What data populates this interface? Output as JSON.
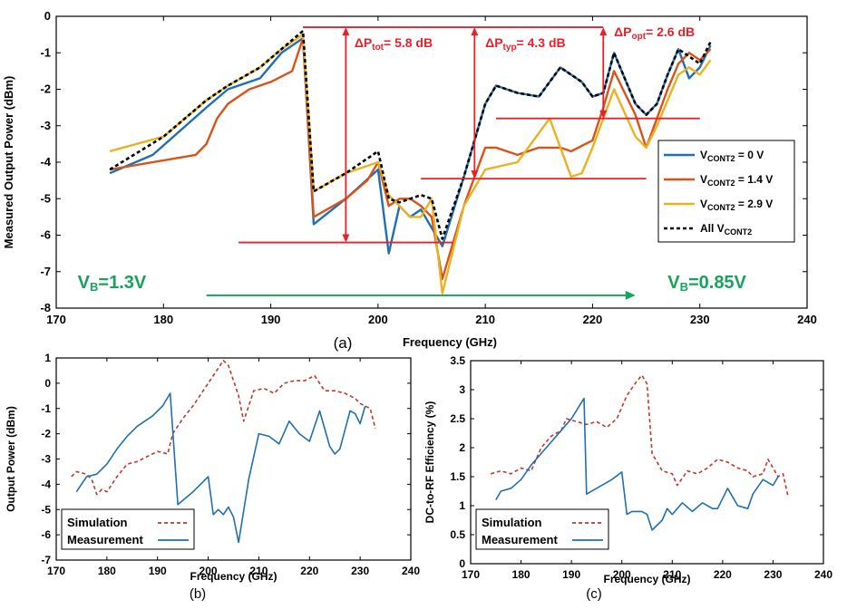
{
  "chart_data": [
    {
      "panel": "(a)",
      "type": "line",
      "xlabel": "Frequency (GHz)",
      "ylabel": "Measured Output Power (dBm)",
      "xlim": [
        170,
        240
      ],
      "ylim": [
        -8,
        0
      ],
      "xticks": [
        "170",
        "180",
        "190",
        "200",
        "210",
        "220",
        "230",
        "240"
      ],
      "yticks": [
        "-8",
        "-7",
        "-6",
        "-5",
        "-4",
        "-3",
        "-2",
        "-1",
        "0"
      ],
      "grid": false,
      "legend": "right",
      "series": [
        {
          "name": "V",
          "sub": "CONT2",
          "suffix": " = 0 V",
          "color": "#1f6fb5",
          "dash": "",
          "x": [
            175,
            179,
            184,
            186,
            189,
            191,
            193,
            194,
            197,
            200,
            201,
            202,
            203,
            204,
            205,
            206,
            208,
            210,
            211,
            213,
            215,
            216,
            217,
            219,
            220,
            221,
            222,
            224,
            225,
            226,
            227,
            228,
            229,
            230,
            231
          ],
          "y": [
            -4.3,
            -3.8,
            -2.5,
            -2.0,
            -1.7,
            -1.0,
            -0.6,
            -5.7,
            -5.0,
            -4.2,
            -6.5,
            -5.2,
            -5.5,
            -5.3,
            -5.8,
            -6.3,
            -4.4,
            -2.4,
            -1.9,
            -2.1,
            -2.2,
            -1.8,
            -1.4,
            -1.8,
            -2.2,
            -2.1,
            -1.0,
            -2.4,
            -2.7,
            -2.4,
            -1.6,
            -0.9,
            -1.7,
            -1.4,
            -0.8
          ]
        },
        {
          "name": "V",
          "sub": "CONT2",
          "suffix": " = 1.4 V",
          "color": "#d95319",
          "dash": "",
          "x": [
            175,
            183,
            184,
            185,
            186,
            188,
            190,
            192,
            193,
            194,
            197,
            199,
            200,
            201,
            202,
            203,
            204,
            205,
            206,
            208,
            210,
            211,
            213,
            215,
            217,
            218,
            220,
            221,
            222,
            224,
            225,
            226,
            227,
            228,
            229,
            230,
            231
          ],
          "y": [
            -4.2,
            -3.8,
            -3.5,
            -2.8,
            -2.4,
            -2.0,
            -1.8,
            -1.5,
            -0.6,
            -5.5,
            -5.0,
            -4.5,
            -4.0,
            -5.2,
            -5.0,
            -5.0,
            -5.2,
            -5.5,
            -7.2,
            -5.2,
            -3.6,
            -3.6,
            -3.8,
            -3.6,
            -3.6,
            -3.7,
            -3.4,
            -2.5,
            -1.5,
            -2.7,
            -3.6,
            -2.8,
            -2.0,
            -1.3,
            -1.0,
            -1.2,
            -0.9
          ]
        },
        {
          "name": "V",
          "sub": "CONT2",
          "suffix": " = 2.9 V",
          "color": "#edb120",
          "dash": "",
          "x": [
            175,
            180,
            184,
            186,
            189,
            191,
            193,
            194,
            197,
            200,
            201,
            202,
            203,
            204,
            205,
            206,
            208,
            210,
            213,
            214,
            216,
            218,
            219,
            220,
            221,
            222,
            224,
            225,
            226,
            228,
            229,
            230,
            231
          ],
          "y": [
            -3.7,
            -3.3,
            -2.3,
            -1.9,
            -1.4,
            -0.9,
            -0.5,
            -4.8,
            -4.3,
            -4.0,
            -4.9,
            -5.2,
            -5.5,
            -5.5,
            -5.0,
            -7.6,
            -5.2,
            -4.2,
            -4.0,
            -3.6,
            -2.8,
            -4.4,
            -4.3,
            -3.6,
            -2.8,
            -2.0,
            -3.3,
            -3.6,
            -3.0,
            -1.6,
            -1.4,
            -1.6,
            -1.2
          ]
        },
        {
          "name": "All V",
          "sub": "CONT2",
          "suffix": "",
          "color": "#000000",
          "dash": "4,3",
          "x": [
            175,
            180,
            184,
            186,
            189,
            191,
            193,
            194,
            197,
            200,
            201,
            202,
            203,
            204,
            205,
            206,
            208,
            210,
            211,
            213,
            215,
            216,
            217,
            219,
            220,
            221,
            222,
            224,
            225,
            226,
            227,
            228,
            229,
            230,
            231
          ],
          "y": [
            -4.2,
            -3.3,
            -2.3,
            -1.9,
            -1.4,
            -0.9,
            -0.4,
            -4.8,
            -4.3,
            -3.7,
            -5.0,
            -5.1,
            -5.0,
            -4.9,
            -5.0,
            -6.1,
            -4.4,
            -2.4,
            -1.9,
            -2.1,
            -2.2,
            -1.8,
            -1.4,
            -1.8,
            -2.2,
            -2.1,
            -1.0,
            -2.4,
            -2.7,
            -2.4,
            -1.6,
            -0.9,
            -1.1,
            -1.3,
            -0.7
          ]
        }
      ],
      "annotations": {
        "hlines": [
          {
            "y": -0.3,
            "x": [
              193,
              221
            ]
          },
          {
            "y": -6.2,
            "x": [
              187,
              207
            ]
          },
          {
            "y": -4.45,
            "x": [
              204,
              225
            ]
          },
          {
            "y": -2.8,
            "x": [
              211,
              230
            ]
          }
        ],
        "arrows": [
          {
            "x": 197,
            "y1": -0.3,
            "y2": -6.2
          },
          {
            "x": 209,
            "y1": -0.3,
            "y2": -4.45
          },
          {
            "x": 221,
            "y1": -0.3,
            "y2": -2.8
          }
        ],
        "labels": [
          {
            "prefix": "ΔP",
            "sub": "tot",
            "text": "= 5.8 dB",
            "x": 197.8,
            "y": -0.85
          },
          {
            "prefix": "ΔP",
            "sub": "typ",
            "text": "= 4.3 dB",
            "x": 210,
            "y": -0.85
          },
          {
            "prefix": "ΔP",
            "sub": "opt",
            "text": "= 2.6 dB",
            "x": 222,
            "y": -0.55
          }
        ],
        "range_arrow": {
          "x": [
            184,
            224
          ],
          "y": -7.65
        },
        "vb_left": {
          "prefix": "V",
          "sub": "B",
          "text": "=1.3V",
          "x": 172,
          "y": -7.45
        },
        "vb_right": {
          "prefix": "V",
          "sub": "B",
          "text": "=0.85V",
          "x": 227,
          "y": -7.45
        },
        "accent": "#e8202a",
        "range_color": "#17a35a"
      },
      "caption": "(a)"
    },
    {
      "panel": "(b)",
      "type": "line",
      "xlabel": "Frequency (GHz)",
      "ylabel": "Output Power (dBm)",
      "xlim": [
        170,
        240
      ],
      "ylim": [
        -7,
        1
      ],
      "xticks": [
        "170",
        "180",
        "190",
        "200",
        "210",
        "220",
        "230",
        "240"
      ],
      "yticks": [
        "-7",
        "-6",
        "-5",
        "-4",
        "-3",
        "-2",
        "-1",
        "0",
        "1"
      ],
      "grid": false,
      "legend": "bottom-left",
      "series": [
        {
          "name": "Simulation",
          "color": "#c0392b",
          "dash": "4,3",
          "x": [
            173,
            174,
            176,
            177,
            178,
            179,
            180,
            182,
            184,
            186,
            188,
            190,
            192,
            193,
            195,
            197,
            199,
            201,
            203,
            204,
            206,
            207,
            209,
            211,
            213,
            215,
            217,
            219,
            221,
            223,
            225,
            227,
            229,
            230,
            231,
            232,
            233
          ],
          "y": [
            -3.7,
            -3.5,
            -3.6,
            -3.8,
            -4.4,
            -4.2,
            -4.3,
            -3.7,
            -3.2,
            -3.1,
            -2.9,
            -2.7,
            -2.8,
            -2.0,
            -1.4,
            -0.9,
            -0.3,
            0.3,
            0.9,
            0.7,
            -0.5,
            -1.5,
            -0.3,
            -0.2,
            -0.4,
            0.0,
            0.1,
            0.1,
            0.3,
            -0.3,
            -0.3,
            -0.4,
            -0.6,
            -0.8,
            -0.9,
            -1.0,
            -1.8
          ]
        },
        {
          "name": "Measurement",
          "color": "#1f6fb5",
          "dash": "",
          "x": [
            174,
            176,
            178,
            180,
            182,
            184,
            186,
            189,
            191,
            192.5,
            194,
            197,
            199,
            200,
            201,
            202,
            203,
            204,
            205,
            206,
            208,
            210,
            212,
            214,
            216,
            218,
            220,
            222,
            224,
            225,
            226,
            228,
            229,
            230,
            231
          ],
          "y": [
            -4.3,
            -3.7,
            -3.6,
            -3.2,
            -2.6,
            -2.1,
            -1.7,
            -1.3,
            -0.9,
            -0.4,
            -4.8,
            -4.3,
            -3.9,
            -3.7,
            -5.2,
            -5.0,
            -5.2,
            -4.9,
            -5.3,
            -6.3,
            -3.8,
            -2.0,
            -2.1,
            -2.4,
            -1.5,
            -2.0,
            -2.3,
            -1.1,
            -2.5,
            -2.8,
            -2.6,
            -1.1,
            -1.2,
            -1.6,
            -0.9
          ]
        }
      ],
      "caption": "(b)"
    },
    {
      "panel": "(c)",
      "type": "line",
      "xlabel": "Frequency (GHz)",
      "ylabel": "DC-to-RF Efficiency (%)",
      "xlim": [
        170,
        240
      ],
      "ylim": [
        0,
        3.5
      ],
      "xticks": [
        "170",
        "180",
        "190",
        "200",
        "210",
        "220",
        "230",
        "240"
      ],
      "yticks": [
        "0",
        "0.5",
        "1",
        "1.5",
        "2",
        "2.5",
        "3",
        "3.5"
      ],
      "grid": false,
      "legend": "bottom-left",
      "series": [
        {
          "name": "Simulation",
          "color": "#c0392b",
          "dash": "4,3",
          "x": [
            174,
            176,
            178,
            180,
            182,
            184,
            186,
            188,
            189,
            191,
            193,
            195,
            197,
            199,
            201,
            203,
            204,
            205,
            206,
            208,
            210,
            211,
            213,
            215,
            217,
            219,
            221,
            223,
            225,
            226,
            228,
            229,
            231,
            232,
            233
          ],
          "y": [
            1.55,
            1.6,
            1.55,
            1.65,
            1.6,
            2.0,
            2.2,
            2.3,
            2.5,
            2.45,
            2.4,
            2.45,
            2.35,
            2.5,
            2.9,
            3.15,
            3.25,
            3.1,
            1.9,
            1.6,
            1.55,
            1.35,
            1.6,
            1.55,
            1.65,
            1.8,
            1.75,
            1.65,
            1.6,
            1.5,
            1.55,
            1.8,
            1.5,
            1.55,
            1.15
          ]
        },
        {
          "name": "Measurement",
          "color": "#1f6fb5",
          "dash": "",
          "x": [
            175,
            176,
            178,
            180,
            182,
            184,
            186,
            188,
            190,
            192.5,
            193,
            196,
            198,
            200,
            201,
            202,
            204,
            205,
            206,
            208,
            209,
            210,
            212,
            214,
            216,
            218,
            219,
            221,
            223,
            225,
            226,
            228,
            230,
            231
          ],
          "y": [
            1.1,
            1.25,
            1.3,
            1.45,
            1.7,
            1.9,
            2.1,
            2.3,
            2.5,
            2.85,
            1.2,
            1.35,
            1.45,
            1.58,
            0.85,
            0.9,
            0.9,
            0.85,
            0.58,
            0.75,
            0.95,
            0.85,
            1.05,
            0.9,
            1.05,
            0.95,
            0.95,
            1.3,
            1.0,
            0.95,
            1.2,
            1.45,
            1.35,
            1.5
          ]
        }
      ],
      "caption": "(c)"
    }
  ]
}
